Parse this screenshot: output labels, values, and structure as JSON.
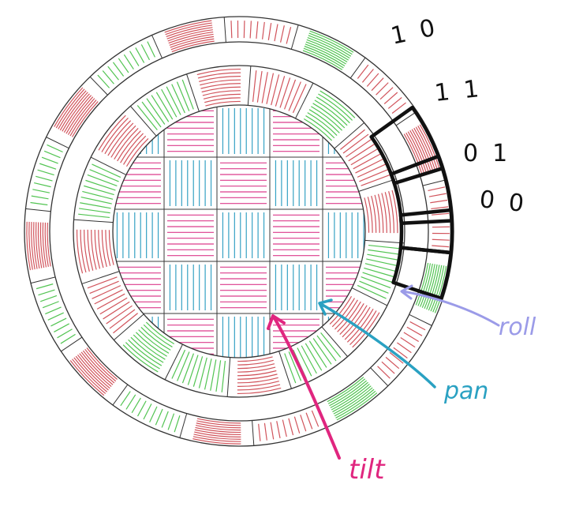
{
  "colors": {
    "background": "#ffffff",
    "outline": "#333333",
    "roll_red": "#d1545c",
    "roll_green": "#52c452",
    "tilt_magenta": "#dc3c8c",
    "pan_cyan": "#36a2c4",
    "pan_arrow": "#2aa1c2",
    "tilt_arrow": "#e0267f",
    "roll_arrow": "#9b9be8",
    "highlight": "#111111",
    "code_text": "#111111"
  },
  "labels": {
    "roll": "roll",
    "pan": "pan",
    "tilt": "tilt"
  },
  "codes": [
    "10",
    "11",
    "01",
    "00"
  ],
  "rings": {
    "outer_segments": [
      "red",
      "green",
      "red",
      "red",
      "red",
      "green",
      "red",
      "green",
      "red",
      "red",
      "green",
      "red",
      "green",
      "red",
      "green",
      "red",
      "green",
      "red"
    ],
    "inner_segments": [
      "red",
      "green",
      "red",
      "red",
      "green",
      "red",
      "green",
      "red",
      "green",
      "green",
      "red",
      "red",
      "green",
      "red",
      "green",
      "red"
    ]
  },
  "grid": {
    "pattern": [
      [
        "pan",
        "tilt",
        "pan",
        "tilt",
        "pan",
        "tilt"
      ],
      [
        "tilt",
        "pan",
        "tilt",
        "pan",
        "tilt",
        "pan"
      ],
      [
        "pan",
        "tilt",
        "pan",
        "tilt",
        "pan",
        "tilt"
      ],
      [
        "tilt",
        "pan",
        "tilt",
        "pan",
        "tilt",
        "pan"
      ],
      [
        "pan",
        "tilt",
        "pan",
        "tilt",
        "pan",
        "tilt"
      ],
      [
        "tilt",
        "pan",
        "tilt",
        "pan",
        "tilt",
        "pan"
      ]
    ]
  }
}
